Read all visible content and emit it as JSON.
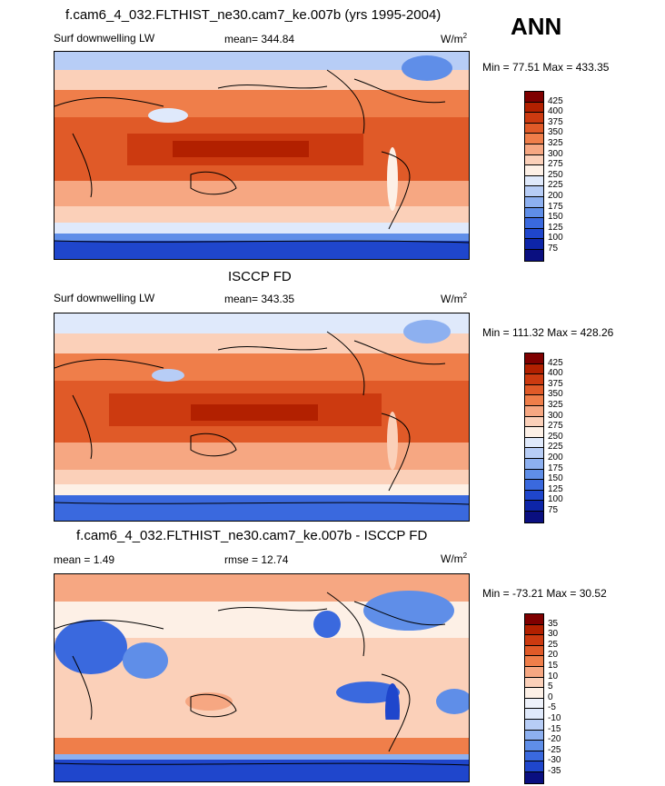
{
  "season": "ANN",
  "panels": [
    {
      "title": "f.cam6_4_032.FLTHIST_ne30.cam7_ke.007b (yrs 1995-2004)",
      "variable": "Surf downwelling LW",
      "left_stat": "",
      "mean": "mean= 344.84",
      "units": "W/m",
      "units_sup": "2",
      "minmax": "Min =  77.51 Max = 433.35",
      "levels": [
        "425",
        "400",
        "375",
        "350",
        "325",
        "300",
        "275",
        "250",
        "225",
        "200",
        "175",
        "150",
        "125",
        "100",
        "75"
      ],
      "colors": [
        "#7f0000",
        "#b22000",
        "#cc3a10",
        "#e05a28",
        "#ef7e4a",
        "#f6a782",
        "#fbd0b9",
        "#fdf0e6",
        "#dfe9fb",
        "#b7cdf6",
        "#8db0f0",
        "#5f8ee8",
        "#3a69de",
        "#1f46cc",
        "#0d25a8",
        "#0a0f80"
      ]
    },
    {
      "title": "ISCCP FD",
      "variable": "Surf downwelling LW",
      "left_stat": "",
      "mean": "mean= 343.35",
      "units": "W/m",
      "units_sup": "2",
      "minmax": "Min = 111.32 Max = 428.26",
      "levels": [
        "425",
        "400",
        "375",
        "350",
        "325",
        "300",
        "275",
        "250",
        "225",
        "200",
        "175",
        "150",
        "125",
        "100",
        "75"
      ],
      "colors": [
        "#7f0000",
        "#b22000",
        "#cc3a10",
        "#e05a28",
        "#ef7e4a",
        "#f6a782",
        "#fbd0b9",
        "#fdf0e6",
        "#dfe9fb",
        "#b7cdf6",
        "#8db0f0",
        "#5f8ee8",
        "#3a69de",
        "#1f46cc",
        "#0d25a8",
        "#0a0f80"
      ]
    },
    {
      "title": "f.cam6_4_032.FLTHIST_ne30.cam7_ke.007b - ISCCP FD",
      "variable": "",
      "left_stat": "mean =   1.49",
      "mean": "rmse =  12.74",
      "units": "W/m",
      "units_sup": "2",
      "minmax": "Min = -73.21 Max =  30.52",
      "levels": [
        "35",
        "30",
        "25",
        "20",
        "15",
        "10",
        "5",
        "0",
        "-5",
        "-10",
        "-15",
        "-20",
        "-25",
        "-30",
        "-35"
      ],
      "colors": [
        "#7f0000",
        "#b22000",
        "#cc3a10",
        "#e05a28",
        "#ef7e4a",
        "#f6a782",
        "#fbd0b9",
        "#fdf0e6",
        "#eef2fb",
        "#dfe9fb",
        "#b7cdf6",
        "#8db0f0",
        "#5f8ee8",
        "#3a69de",
        "#1f46cc",
        "#0a0f80"
      ]
    }
  ]
}
